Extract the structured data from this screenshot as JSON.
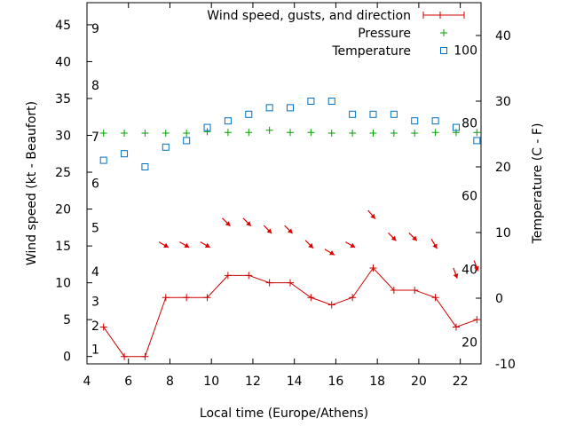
{
  "chart_data": {
    "type": "line",
    "xlabel": "Local time (Europe/Athens)",
    "ylabel_left": "Wind speed (kt - Beaufort)",
    "ylabel_right": "Temperature (C - F)",
    "xlim": [
      4,
      23
    ],
    "ylim_left": [
      -1,
      48
    ],
    "ylim_right": [
      -10,
      45
    ],
    "x_ticks": [
      4,
      6,
      8,
      10,
      12,
      14,
      16,
      18,
      20,
      22
    ],
    "y_ticks_left": [
      0,
      5,
      10,
      15,
      20,
      25,
      30,
      35,
      40,
      45
    ],
    "y_ticks_right": [
      -10,
      0,
      10,
      20,
      30,
      40
    ],
    "beaufort_labels": [
      {
        "label": "1",
        "kt": 1
      },
      {
        "label": "2",
        "kt": 4.2
      },
      {
        "label": "3",
        "kt": 7.5
      },
      {
        "label": "4",
        "kt": 11.5
      },
      {
        "label": "5",
        "kt": 17.5
      },
      {
        "label": "6",
        "kt": 23.5
      },
      {
        "label": "7",
        "kt": 29.8
      },
      {
        "label": "8",
        "kt": 36.8
      },
      {
        "label": "9",
        "kt": 44.5
      }
    ],
    "fahrenheit_labels": [
      {
        "label": "20",
        "c": -6.7
      },
      {
        "label": "40",
        "c": 4.4
      },
      {
        "label": "60",
        "c": 15.6
      },
      {
        "label": "80",
        "c": 26.7
      },
      {
        "label": "100",
        "c": 37.8
      }
    ],
    "legend": [
      {
        "label": "Wind speed, gusts, and direction",
        "color": "#cc0000",
        "marker": "line-plus"
      },
      {
        "label": "Pressure",
        "color": "#00a000",
        "marker": "plus"
      },
      {
        "label": "Temperature",
        "color": "#0070c0",
        "marker": "square"
      }
    ],
    "legend_position": "top-right",
    "series": [
      {
        "name": "Wind speed, gusts, and direction",
        "color": "#cc0000",
        "x": [
          4.8,
          5.8,
          6.8,
          7.8,
          8.8,
          9.8,
          10.8,
          11.8,
          12.8,
          13.8,
          14.8,
          15.8,
          16.8,
          17.8,
          18.8,
          19.8,
          20.8,
          21.8,
          22.8
        ],
        "y": [
          4,
          0,
          0,
          8,
          8,
          8,
          11,
          11,
          10,
          10,
          8,
          7,
          8,
          12,
          9,
          9,
          8,
          4,
          5
        ]
      },
      {
        "name": "Pressure",
        "color": "#00a000",
        "x": [
          4.8,
          5.8,
          6.8,
          7.8,
          8.8,
          9.8,
          10.8,
          11.8,
          12.8,
          13.8,
          14.8,
          15.8,
          16.8,
          17.8,
          18.8,
          19.8,
          20.8,
          21.8,
          22.8
        ],
        "y": [
          30.3,
          30.3,
          30.3,
          30.3,
          30.3,
          30.5,
          30.4,
          30.4,
          30.7,
          30.4,
          30.4,
          30.3,
          30.3,
          30.3,
          30.3,
          30.3,
          30.4,
          30.4,
          30.4
        ]
      },
      {
        "name": "Temperature",
        "color": "#0070c0",
        "x": [
          4.8,
          5.8,
          6.8,
          7.8,
          8.8,
          9.8,
          10.8,
          11.8,
          12.8,
          13.8,
          14.8,
          15.8,
          16.8,
          17.8,
          18.8,
          19.8,
          20.8,
          21.8,
          22.8
        ],
        "y": [
          21,
          22,
          20,
          23,
          24,
          26,
          27,
          28,
          29,
          29,
          30,
          30,
          28,
          28,
          28,
          27,
          27,
          26,
          24
        ]
      }
    ],
    "wind_direction_arrows": [
      {
        "x": 7.8,
        "y": 15,
        "dir": 300
      },
      {
        "x": 8.8,
        "y": 15,
        "dir": 300
      },
      {
        "x": 9.8,
        "y": 15,
        "dir": 300
      },
      {
        "x": 10.8,
        "y": 18,
        "dir": 315
      },
      {
        "x": 11.8,
        "y": 18,
        "dir": 315
      },
      {
        "x": 12.8,
        "y": 17,
        "dir": 315
      },
      {
        "x": 13.8,
        "y": 17,
        "dir": 315
      },
      {
        "x": 14.8,
        "y": 15,
        "dir": 315
      },
      {
        "x": 15.8,
        "y": 14,
        "dir": 300
      },
      {
        "x": 16.8,
        "y": 15,
        "dir": 300
      },
      {
        "x": 17.8,
        "y": 19,
        "dir": 320
      },
      {
        "x": 18.8,
        "y": 16,
        "dir": 315
      },
      {
        "x": 19.8,
        "y": 16,
        "dir": 315
      },
      {
        "x": 20.8,
        "y": 15,
        "dir": 330
      },
      {
        "x": 21.8,
        "y": 11,
        "dir": 340
      },
      {
        "x": 22.8,
        "y": 12,
        "dir": 340
      }
    ],
    "grid": false
  }
}
